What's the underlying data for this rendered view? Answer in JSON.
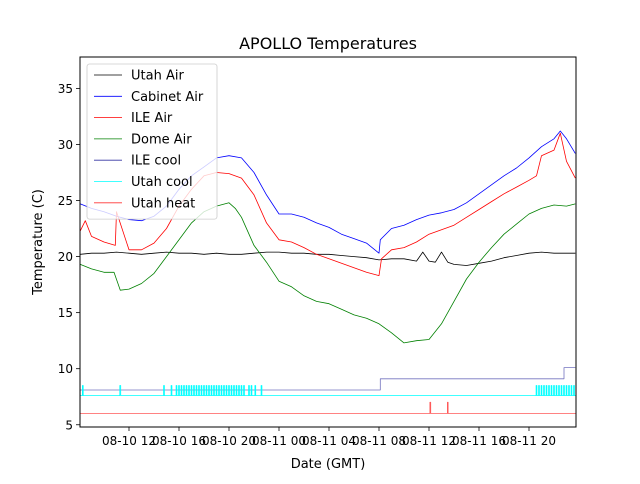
{
  "chart_data": {
    "type": "line",
    "title": "APOLLO Temperatures",
    "xlabel": "Date (GMT)",
    "ylabel": "Temperature (C)",
    "xlim_hours_from_08_10_00": [
      8.08,
      47.76
    ],
    "ylim": [
      4.8,
      37.8
    ],
    "grid": false,
    "legend_position": "top-left",
    "x_ticks": [
      {
        "hour": 12,
        "label": "08-10 12"
      },
      {
        "hour": 16,
        "label": "08-10 16"
      },
      {
        "hour": 20,
        "label": "08-10 20"
      },
      {
        "hour": 24,
        "label": "08-11 00"
      },
      {
        "hour": 28,
        "label": "08-11 04"
      },
      {
        "hour": 32,
        "label": "08-11 08"
      },
      {
        "hour": 36,
        "label": "08-11 12"
      },
      {
        "hour": 40,
        "label": "08-11 16"
      },
      {
        "hour": 44,
        "label": "08-11 20"
      }
    ],
    "y_ticks": [
      5,
      10,
      15,
      20,
      25,
      30,
      35
    ],
    "series": [
      {
        "name": "Utah Air",
        "color": "#000000",
        "x": [
          8.1,
          9,
          10,
          11,
          12,
          13,
          14,
          15,
          16,
          17,
          18,
          19,
          20,
          21,
          22,
          23,
          24,
          25,
          26,
          27,
          28,
          29,
          30,
          31,
          32,
          33,
          34,
          35,
          35.5,
          36,
          36.5,
          37,
          37.5,
          38,
          39,
          40,
          41,
          42,
          43,
          44,
          45,
          46,
          47,
          47.7
        ],
        "y": [
          20.2,
          20.3,
          20.3,
          20.4,
          20.3,
          20.2,
          20.3,
          20.4,
          20.3,
          20.3,
          20.2,
          20.3,
          20.2,
          20.2,
          20.3,
          20.4,
          20.4,
          20.3,
          20.3,
          20.2,
          20.2,
          20.1,
          20.0,
          19.9,
          19.7,
          19.8,
          19.8,
          19.6,
          20.4,
          19.6,
          19.5,
          20.4,
          19.5,
          19.3,
          19.2,
          19.4,
          19.6,
          19.9,
          20.1,
          20.3,
          20.4,
          20.3,
          20.3,
          20.3
        ]
      },
      {
        "name": "Cabinet Air",
        "color": "#0000ff",
        "x": [
          8.1,
          9,
          10,
          11,
          12,
          13,
          14,
          15,
          16,
          17,
          18,
          19,
          20,
          21,
          22,
          23,
          24,
          25,
          26,
          27,
          28,
          29,
          30,
          31,
          32,
          32.1,
          33,
          34,
          35,
          36,
          37,
          38,
          39,
          40,
          41,
          42,
          43,
          44,
          45,
          46,
          46.5,
          47,
          47.7
        ],
        "y": [
          24.7,
          24.3,
          24.0,
          23.6,
          23.3,
          23.2,
          23.6,
          24.5,
          26.0,
          27.2,
          28.0,
          28.8,
          29.0,
          28.8,
          27.5,
          25.5,
          23.8,
          23.8,
          23.5,
          23.0,
          22.6,
          22.0,
          21.6,
          21.2,
          20.3,
          21.5,
          22.5,
          22.8,
          23.3,
          23.7,
          23.9,
          24.2,
          24.8,
          25.6,
          26.4,
          27.2,
          27.9,
          28.8,
          29.8,
          30.5,
          31.2,
          30.5,
          29.2
        ]
      },
      {
        "name": "ILE Air",
        "color": "#ff0000",
        "x": [
          8.1,
          8.5,
          9,
          10,
          10.9,
          11,
          12,
          13,
          14,
          15,
          16,
          17,
          18,
          19,
          20,
          21,
          22,
          23,
          24,
          25,
          26,
          27,
          28,
          29,
          30,
          31,
          32,
          32.2,
          33,
          34,
          35,
          36,
          37,
          38,
          39,
          40,
          41,
          42,
          43,
          44,
          44.6,
          45,
          46,
          46.5,
          47,
          47.7
        ],
        "y": [
          22.3,
          23.2,
          21.8,
          21.3,
          21.0,
          24.0,
          20.6,
          20.6,
          21.2,
          22.5,
          24.5,
          26.0,
          27.2,
          27.5,
          27.4,
          27.0,
          25.5,
          23.0,
          21.5,
          21.3,
          20.8,
          20.2,
          19.8,
          19.4,
          19.0,
          18.6,
          18.3,
          19.8,
          20.6,
          20.8,
          21.3,
          22.0,
          22.4,
          22.8,
          23.5,
          24.2,
          24.9,
          25.6,
          26.2,
          26.8,
          27.2,
          29.0,
          29.5,
          31.0,
          28.5,
          27.0
        ]
      },
      {
        "name": "Dome Air",
        "color": "#008000",
        "x": [
          8.1,
          9,
          10,
          10.8,
          11.3,
          12,
          13,
          14,
          15,
          16,
          17,
          18,
          19,
          20,
          20.5,
          21,
          22,
          23,
          24,
          25,
          26,
          27,
          28,
          29,
          30,
          31,
          32,
          33,
          34,
          35,
          36,
          37,
          38,
          39,
          40,
          41,
          42,
          43,
          44,
          45,
          46,
          47,
          47.7
        ],
        "y": [
          19.3,
          18.9,
          18.6,
          18.6,
          17.0,
          17.1,
          17.6,
          18.5,
          20.0,
          21.5,
          23.0,
          24.0,
          24.5,
          24.8,
          24.3,
          23.5,
          21.0,
          19.5,
          17.8,
          17.3,
          16.5,
          16.0,
          15.8,
          15.3,
          14.8,
          14.5,
          14.0,
          13.2,
          12.3,
          12.5,
          12.6,
          14.0,
          16.0,
          18.0,
          19.5,
          20.8,
          22.0,
          22.9,
          23.8,
          24.3,
          24.6,
          24.5,
          24.7
        ]
      },
      {
        "name": "ILE cool",
        "color": "#00008b",
        "x": [
          8.1,
          32.1,
          32.1,
          46.8,
          46.8,
          47.7
        ],
        "y": [
          8.1,
          8.1,
          9.1,
          9.1,
          10.1,
          10.1
        ],
        "alpha": 0.55
      },
      {
        "name": "Utah cool",
        "color": "#00ffff",
        "baseline": 7.6,
        "pulse_value": 8.5,
        "pulse_hours": [
          8.3,
          11.3,
          14.8,
          15.4,
          15.8,
          16.0,
          16.2,
          16.4,
          16.6,
          16.8,
          17.0,
          17.2,
          17.4,
          17.6,
          17.8,
          18.0,
          18.2,
          18.4,
          18.6,
          18.8,
          19.0,
          19.2,
          19.4,
          19.6,
          19.8,
          20.0,
          20.2,
          20.4,
          20.6,
          20.8,
          21.0,
          21.2,
          21.6,
          21.8,
          22.1,
          22.6,
          44.6,
          44.8,
          45.0,
          45.2,
          45.4,
          45.6,
          45.8,
          46.0,
          46.2,
          46.4,
          46.6,
          46.8,
          47.0,
          47.2,
          47.4,
          47.6
        ]
      },
      {
        "name": "Utah heat",
        "color": "#ff0000",
        "baseline": 6.0,
        "pulse_value": 7.0,
        "pulse_hours": [
          36.1,
          37.5
        ],
        "alpha": 0.65
      }
    ]
  }
}
